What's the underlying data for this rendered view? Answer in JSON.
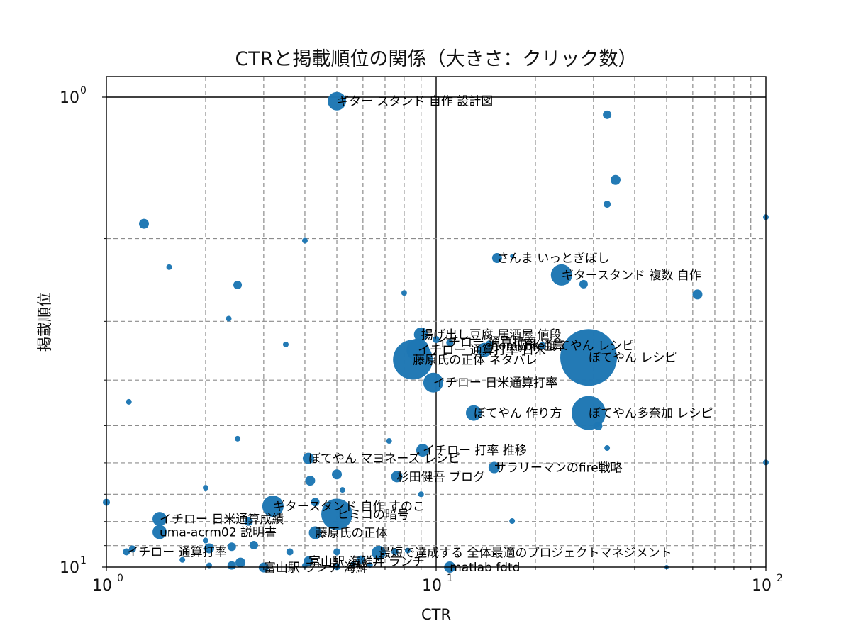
{
  "chart_data": {
    "type": "scatter",
    "title": "CTRと掲載順位の関係（大きさ：クリック数）",
    "xlabel": "CTR",
    "ylabel": "掲載順位",
    "xscale": "log",
    "yscale": "log",
    "y_inverted": true,
    "xlim": [
      1,
      100
    ],
    "ylim": [
      10,
      1
    ],
    "grid": true,
    "point_color": "#1f77b4",
    "x_ticks": [
      {
        "value": 1,
        "base": "10",
        "exp": "0"
      },
      {
        "value": 10,
        "base": "10",
        "exp": "1"
      },
      {
        "value": 100,
        "base": "10",
        "exp": "2"
      }
    ],
    "y_ticks": [
      {
        "value": 1,
        "base": "10",
        "exp": "0"
      },
      {
        "value": 10,
        "base": "10",
        "exp": "1"
      }
    ],
    "points": [
      {
        "x": 5.0,
        "y": 1.02,
        "size": 13,
        "label": "ギター スタンド 自作 設計図"
      },
      {
        "x": 33.0,
        "y": 1.09,
        "size": 6,
        "label": ""
      },
      {
        "x": 35.0,
        "y": 1.5,
        "size": 7,
        "label": ""
      },
      {
        "x": 33.0,
        "y": 1.69,
        "size": 5,
        "label": ""
      },
      {
        "x": 100.0,
        "y": 1.8,
        "size": 4,
        "label": ""
      },
      {
        "x": 1.3,
        "y": 1.86,
        "size": 7,
        "label": ""
      },
      {
        "x": 4.0,
        "y": 2.02,
        "size": 4,
        "label": ""
      },
      {
        "x": 15.3,
        "y": 2.2,
        "size": 7,
        "label": "さんま いっとぎぼし"
      },
      {
        "x": 17.0,
        "y": 2.18,
        "size": 3,
        "label": ""
      },
      {
        "x": 1.55,
        "y": 2.3,
        "size": 4,
        "label": ""
      },
      {
        "x": 24.0,
        "y": 2.39,
        "size": 15,
        "label": "ギタースタンド 複数 自作"
      },
      {
        "x": 28.0,
        "y": 2.5,
        "size": 6,
        "label": ""
      },
      {
        "x": 2.5,
        "y": 2.51,
        "size": 6,
        "label": ""
      },
      {
        "x": 8.0,
        "y": 2.61,
        "size": 4,
        "label": ""
      },
      {
        "x": 62.0,
        "y": 2.63,
        "size": 7,
        "label": ""
      },
      {
        "x": 2.35,
        "y": 2.96,
        "size": 4,
        "label": ""
      },
      {
        "x": 3.5,
        "y": 3.36,
        "size": 4,
        "label": ""
      },
      {
        "x": 9.0,
        "y": 3.2,
        "size": 10,
        "label": "揚げ出し豆腐 居酒屋 値段"
      },
      {
        "x": 10.0,
        "y": 3.28,
        "size": 5,
        "label": ""
      },
      {
        "x": 11.0,
        "y": 3.33,
        "size": 5,
        "label": ""
      },
      {
        "x": 14.0,
        "y": 3.45,
        "size": 10,
        "label": ""
      },
      {
        "x": 14.5,
        "y": 3.35,
        "size": 5,
        "label": ""
      },
      {
        "x": 21.0,
        "y": 3.38,
        "size": 5,
        "label": ""
      },
      {
        "x": 29.0,
        "y": 3.58,
        "size": 40,
        "label": "ぼてやん レシピ"
      },
      {
        "x": 8.8,
        "y": 3.45,
        "size": 16,
        "label": "イチロー 通算打率 日米"
      },
      {
        "x": 8.5,
        "y": 3.62,
        "size": 28,
        "label": "藤原氏の正体 ネタバレ"
      },
      {
        "x": 9.8,
        "y": 4.05,
        "size": 14,
        "label": "イチロー 日米通算打率"
      },
      {
        "x": 13.0,
        "y": 4.7,
        "size": 11,
        "label": "ぼてやん 作り方"
      },
      {
        "x": 29.0,
        "y": 4.7,
        "size": 24,
        "label": "ぼてやん多奈加 レシピ"
      },
      {
        "x": 31.0,
        "y": 5.01,
        "size": 6,
        "label": ""
      },
      {
        "x": 1.17,
        "y": 4.45,
        "size": 4,
        "label": ""
      },
      {
        "x": 2.5,
        "y": 5.33,
        "size": 4,
        "label": ""
      },
      {
        "x": 7.2,
        "y": 5.39,
        "size": 4,
        "label": ""
      },
      {
        "x": 33.0,
        "y": 5.58,
        "size": 4,
        "label": ""
      },
      {
        "x": 9.1,
        "y": 5.64,
        "size": 9,
        "label": "イチロー 打率 推移"
      },
      {
        "x": 15.0,
        "y": 6.14,
        "size": 8,
        "label": "サラリーマンのfire戦略"
      },
      {
        "x": 100.0,
        "y": 5.99,
        "size": 4,
        "label": ""
      },
      {
        "x": 4.1,
        "y": 5.87,
        "size": 8,
        "label": "ぼてやん マヨネーズ レシピ"
      },
      {
        "x": 4.15,
        "y": 6.55,
        "size": 7,
        "label": ""
      },
      {
        "x": 5.0,
        "y": 6.35,
        "size": 7,
        "label": ""
      },
      {
        "x": 7.6,
        "y": 6.42,
        "size": 8,
        "label": "杉田健吾 ブログ"
      },
      {
        "x": 5.2,
        "y": 6.85,
        "size": 4,
        "label": ""
      },
      {
        "x": 2.0,
        "y": 6.78,
        "size": 4,
        "label": ""
      },
      {
        "x": 9.0,
        "y": 7.0,
        "size": 4,
        "label": ""
      },
      {
        "x": 4.3,
        "y": 7.27,
        "size": 6,
        "label": ""
      },
      {
        "x": 3.2,
        "y": 7.42,
        "size": 15,
        "label": "ギタースタンド 自作 すのこ"
      },
      {
        "x": 5.0,
        "y": 7.72,
        "size": 22,
        "label": "ヒミコの暗号"
      },
      {
        "x": 1.0,
        "y": 7.28,
        "size": 5,
        "label": ""
      },
      {
        "x": 1.45,
        "y": 7.9,
        "size": 10,
        "label": "イチロー 日米通算成績"
      },
      {
        "x": 1.45,
        "y": 8.42,
        "size": 10,
        "label": "uma-acrm02 説明書"
      },
      {
        "x": 17.0,
        "y": 7.98,
        "size": 4,
        "label": ""
      },
      {
        "x": 2.7,
        "y": 8.0,
        "size": 6,
        "label": ""
      },
      {
        "x": 4.3,
        "y": 8.45,
        "size": 9,
        "label": "藤原氏の正体"
      },
      {
        "x": 2.0,
        "y": 8.78,
        "size": 4,
        "label": ""
      },
      {
        "x": 2.8,
        "y": 8.98,
        "size": 6,
        "label": ""
      },
      {
        "x": 2.4,
        "y": 9.05,
        "size": 6,
        "label": ""
      },
      {
        "x": 2.05,
        "y": 9.12,
        "size": 7,
        "label": ""
      },
      {
        "x": 1.2,
        "y": 9.15,
        "size": 5,
        "label": ""
      },
      {
        "x": 1.15,
        "y": 9.28,
        "size": 5,
        "label": "イチロー 通算打率"
      },
      {
        "x": 3.6,
        "y": 9.28,
        "size": 5,
        "label": ""
      },
      {
        "x": 5.0,
        "y": 9.28,
        "size": 5,
        "label": ""
      },
      {
        "x": 6.7,
        "y": 9.32,
        "size": 10,
        "label": "最短で達成する 全体最適のプロジェクトマネジメント"
      },
      {
        "x": 7.5,
        "y": 9.27,
        "size": 5,
        "label": ""
      },
      {
        "x": 8.2,
        "y": 9.22,
        "size": 4,
        "label": ""
      },
      {
        "x": 5.9,
        "y": 9.65,
        "size": 6,
        "label": ""
      },
      {
        "x": 4.1,
        "y": 9.72,
        "size": 7,
        "label": "富山駅 海鮮丼 ランチ"
      },
      {
        "x": 1.7,
        "y": 9.65,
        "size": 4,
        "label": ""
      },
      {
        "x": 2.55,
        "y": 9.78,
        "size": 7,
        "label": ""
      },
      {
        "x": 2.4,
        "y": 9.92,
        "size": 6,
        "label": ""
      },
      {
        "x": 2.05,
        "y": 9.92,
        "size": 4,
        "label": ""
      },
      {
        "x": 3.0,
        "y": 10.02,
        "size": 7,
        "label": "富山駅 ランチ 海鮮"
      },
      {
        "x": 5.0,
        "y": 9.98,
        "size": 5,
        "label": ""
      },
      {
        "x": 11.0,
        "y": 10.0,
        "size": 8,
        "label": "matlab fdtd"
      },
      {
        "x": 50.0,
        "y": 10.0,
        "size": 3,
        "label": ""
      },
      {
        "x": 4.0,
        "y": 9.92,
        "size": 4,
        "label": ""
      },
      {
        "x": 5.6,
        "y": 9.86,
        "size": 4,
        "label": ""
      },
      {
        "x": 6.3,
        "y": 9.9,
        "size": 4,
        "label": ""
      }
    ],
    "overlap_labels": [
      {
        "x": 10.0,
        "y": 3.32,
        "label": "イチロー 通算打率"
      },
      {
        "x": 14.0,
        "y": 3.38,
        "label": "chomyfire"
      },
      {
        "x": 17.5,
        "y": 3.38,
        "label": "日米通算"
      },
      {
        "x": 21.5,
        "y": 3.38,
        "label": "ぼてやん レシピ"
      }
    ]
  }
}
